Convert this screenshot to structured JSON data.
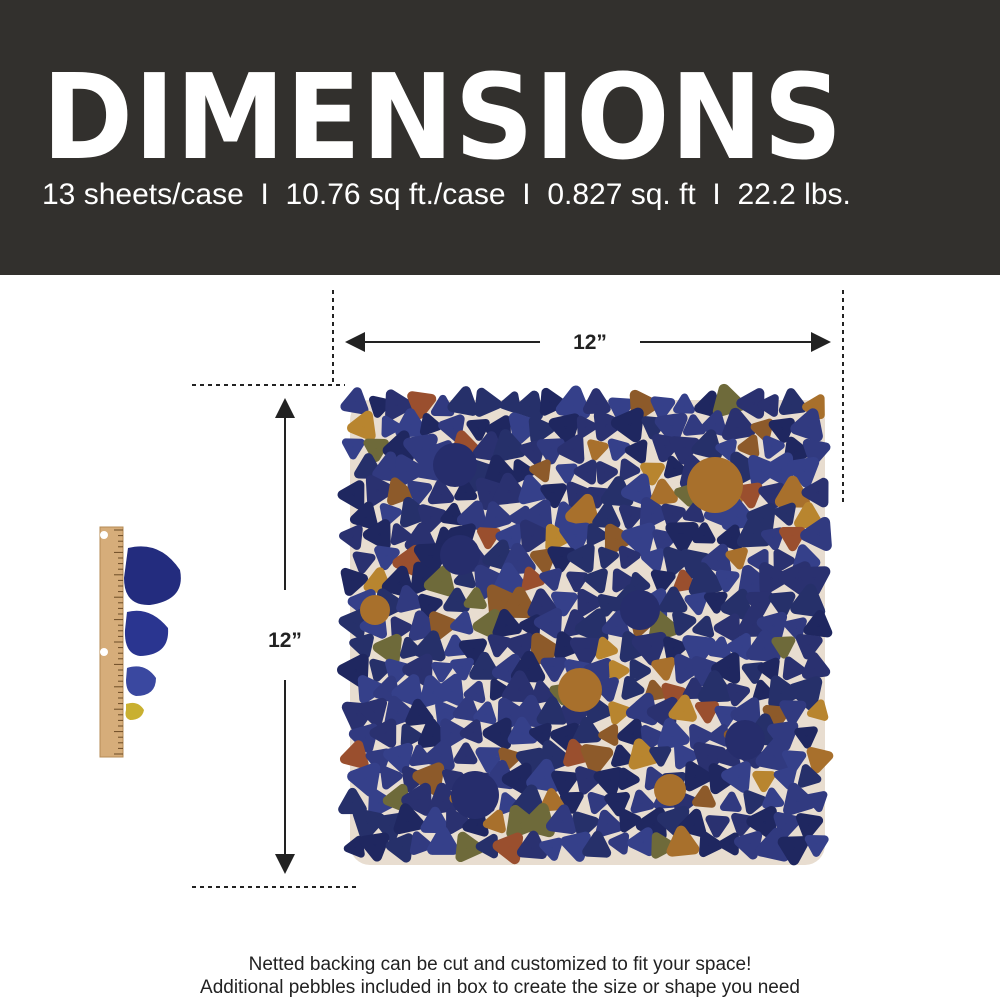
{
  "header": {
    "title": "DIMENSIONS",
    "specs": [
      "13 sheets/case",
      "10.76 sq ft./case",
      "0.827 sq. ft",
      "22.2 lbs."
    ],
    "separator": "I"
  },
  "dimensions": {
    "width_label": "12”",
    "height_label": "12”"
  },
  "caption": {
    "line1": "Netted backing can be cut and customized to fit your space!",
    "line2": "Additional pebbles included in box to create the size or shape you need"
  },
  "colors": {
    "header_bg": "#32302d",
    "pebble_blue": "#2a3170",
    "pebble_gold": "#a8702c",
    "ruler": "#d6ad7a"
  }
}
